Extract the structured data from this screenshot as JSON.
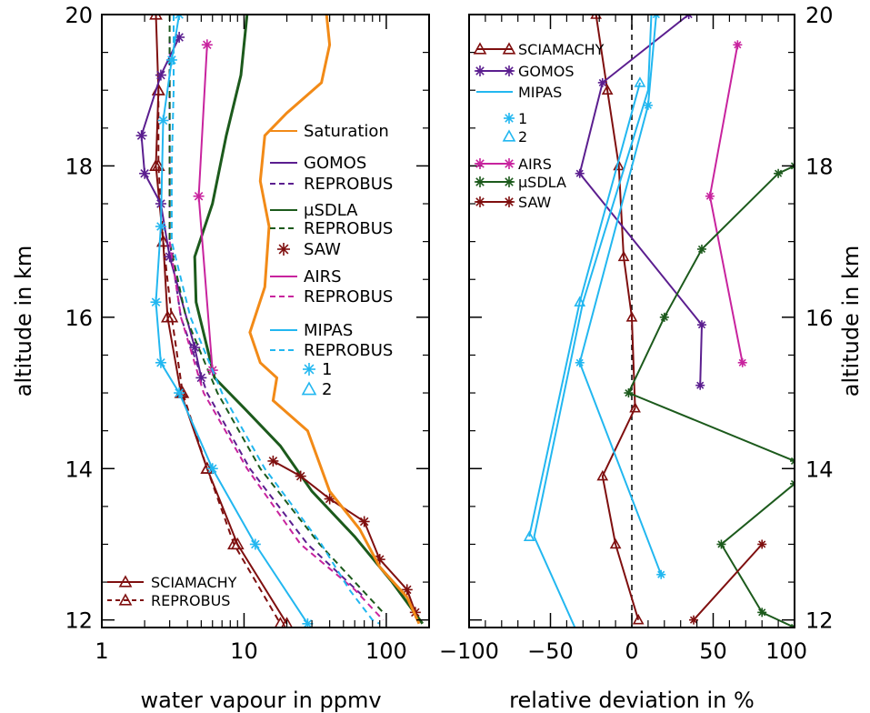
{
  "chart_data": [
    {
      "type": "line",
      "xscale": "log",
      "xlim": [
        1,
        200
      ],
      "ylim": [
        11.9,
        20
      ],
      "xticks": [
        "1",
        "10",
        "100"
      ],
      "yticks": [
        "12",
        "14",
        "16",
        "18",
        "20"
      ],
      "xlabel": "water vapour in ppmv",
      "ylabel": "altitude in km",
      "legend_main": [
        "Saturation",
        "GOMOS",
        "REPROBUS",
        "μSDLA",
        "REPROBUS",
        "SAW",
        "AIRS",
        "REPROBUS",
        "MIPAS",
        "REPROBUS",
        "1",
        "2"
      ],
      "legend_bottom": [
        "SCIAMACHY",
        "REPROBUS"
      ],
      "series": [
        {
          "name": "SCIAMACHY",
          "color": "#7f0f0f",
          "marker": "triangle",
          "points": [
            [
              2.4,
              20
            ],
            [
              2.5,
              19
            ],
            [
              2.4,
              18
            ],
            [
              2.7,
              17
            ],
            [
              2.9,
              16
            ],
            [
              3.6,
              15
            ],
            [
              5.5,
              14
            ],
            [
              9,
              13
            ],
            [
              20,
              11.95
            ]
          ]
        },
        {
          "name": "SCIAMACHY REPROBUS",
          "color": "#7f0f0f",
          "dash": true,
          "marker": "triangle",
          "points": [
            [
              2.5,
              19
            ],
            [
              2.5,
              18
            ],
            [
              2.7,
              17
            ],
            [
              3.1,
              16
            ],
            [
              3.7,
              15
            ],
            [
              5.5,
              14
            ],
            [
              8.5,
              13
            ],
            [
              18,
              11.95
            ]
          ]
        },
        {
          "name": "GOMOS",
          "color": "#5b1e8f",
          "marker": "asterisk",
          "points": [
            [
              3.5,
              19.7
            ],
            [
              2.6,
              19.2
            ],
            [
              1.9,
              18.4
            ],
            [
              2.0,
              17.9
            ],
            [
              2.6,
              17.5
            ],
            [
              3.0,
              16.8
            ],
            [
              4.5,
              15.6
            ],
            [
              5,
              15.2
            ]
          ]
        },
        {
          "name": "GOMOS REPROBUS",
          "color": "#5b1e8f",
          "dash": true,
          "points": [
            [
              3.0,
              19.7
            ],
            [
              3.0,
              19
            ],
            [
              3.0,
              18
            ],
            [
              3.0,
              17
            ],
            [
              3.6,
              16
            ],
            [
              5.5,
              15
            ],
            [
              11,
              14
            ],
            [
              28,
              13
            ],
            [
              70,
              12.3
            ]
          ]
        },
        {
          "name": "μSDLA",
          "color": "#1c5a1c",
          "marker": "none",
          "points": [
            [
              10.5,
              20
            ],
            [
              9.5,
              19.2
            ],
            [
              7.5,
              18.4
            ],
            [
              6,
              17.5
            ],
            [
              4.5,
              16.8
            ],
            [
              4.6,
              16.2
            ],
            [
              6.2,
              15.2
            ],
            [
              10,
              14.8
            ],
            [
              18,
              14.3
            ],
            [
              30,
              13.7
            ],
            [
              60,
              13.1
            ],
            [
              110,
              12.5
            ],
            [
              180,
              11.95
            ]
          ]
        },
        {
          "name": "μSDLA REPROBUS",
          "color": "#1c5a1c",
          "dash": true,
          "points": [
            [
              3.0,
              20
            ],
            [
              3.0,
              19
            ],
            [
              3.0,
              18
            ],
            [
              3.0,
              17
            ],
            [
              3.9,
              16
            ],
            [
              6.5,
              15
            ],
            [
              13,
              14
            ],
            [
              34,
              13
            ],
            [
              95,
              12.1
            ]
          ]
        },
        {
          "name": "SAW",
          "color": "#7f0f0f",
          "marker": "asterisk",
          "points": [
            [
              16,
              14.1
            ],
            [
              25,
              13.9
            ],
            [
              40,
              13.6
            ],
            [
              70,
              13.3
            ],
            [
              90,
              12.8
            ],
            [
              140,
              12.4
            ],
            [
              160,
              12.1
            ]
          ]
        },
        {
          "name": "AIRS",
          "color": "#c8239e",
          "marker": "asterisk",
          "points": [
            [
              5.5,
              19.6
            ],
            [
              4.8,
              17.6
            ],
            [
              6,
              15.3
            ]
          ]
        },
        {
          "name": "AIRS REPROBUS",
          "color": "#c8239e",
          "dash": true,
          "points": [
            [
              3.0,
              17
            ],
            [
              3.6,
              16
            ],
            [
              5.2,
              15
            ],
            [
              10.5,
              14
            ],
            [
              25,
              13
            ],
            [
              60,
              12.4
            ],
            [
              95,
              12
            ]
          ]
        },
        {
          "name": "MIPAS",
          "color": "#22b7f0",
          "marker": "asterisk",
          "points": [
            [
              3.5,
              20
            ],
            [
              3.1,
              19.4
            ],
            [
              2.7,
              18.6
            ],
            [
              2.6,
              17.2
            ],
            [
              2.4,
              16.2
            ],
            [
              2.6,
              15.4
            ],
            [
              3.5,
              15
            ],
            [
              6,
              14
            ],
            [
              12,
              13
            ],
            [
              28,
              11.95
            ]
          ]
        },
        {
          "name": "MIPAS REPROBUS",
          "color": "#22b7f0",
          "dash": true,
          "points": [
            [
              3.2,
              20
            ],
            [
              3.2,
              19
            ],
            [
              3.1,
              18
            ],
            [
              3.1,
              17
            ],
            [
              4.2,
              16
            ],
            [
              7,
              15
            ],
            [
              14,
              14
            ],
            [
              35,
              13
            ],
            [
              55,
              12.4
            ],
            [
              80,
              12
            ],
            [
              90,
              11.95
            ]
          ]
        },
        {
          "name": "Saturation",
          "color": "#f28a17",
          "marker": "none",
          "points": [
            [
              38,
              20
            ],
            [
              40,
              19.6
            ],
            [
              35,
              19.1
            ],
            [
              20,
              18.7
            ],
            [
              14,
              18.4
            ],
            [
              13,
              17.8
            ],
            [
              15,
              17.2
            ],
            [
              14,
              16.4
            ],
            [
              11,
              15.8
            ],
            [
              13,
              15.4
            ],
            [
              17,
              15.2
            ],
            [
              16,
              14.9
            ],
            [
              28,
              14.5
            ],
            [
              40,
              13.7
            ],
            [
              65,
              13.2
            ],
            [
              90,
              12.7
            ],
            [
              140,
              12.3
            ],
            [
              170,
              11.95
            ]
          ]
        }
      ]
    },
    {
      "type": "line",
      "xlim": [
        -100,
        100
      ],
      "ylim": [
        11.9,
        20
      ],
      "xticks": [
        "−100",
        "−50",
        "0",
        "50",
        "100"
      ],
      "yticks": [
        "12",
        "14",
        "16",
        "18",
        "20"
      ],
      "xlabel": "relative deviation in %",
      "ylabel": "altitude in km",
      "legend": [
        "SCIAMACHY",
        "GOMOS",
        "MIPAS",
        "1",
        "2",
        "AIRS",
        "μSDLA",
        "SAW"
      ],
      "series": [
        {
          "name": "SCIAMACHY",
          "color": "#7f0f0f",
          "marker": "triangle",
          "points": [
            [
              -22,
              20
            ],
            [
              -15,
              19
            ],
            [
              -8,
              18
            ],
            [
              -5,
              16.8
            ],
            [
              0,
              16
            ],
            [
              2,
              14.8
            ],
            [
              -18,
              13.9
            ],
            [
              -10,
              13
            ],
            [
              4,
              12
            ]
          ]
        },
        {
          "name": "GOMOS",
          "color": "#5b1e8f",
          "marker": "asterisk",
          "points": [
            [
              35,
              20
            ],
            [
              -18,
              19.1
            ],
            [
              -32,
              17.9
            ],
            [
              43,
              15.9
            ],
            [
              42,
              15.1
            ]
          ]
        },
        {
          "name": "MIPAS",
          "color": "#22b7f0",
          "marker": "none",
          "points": [
            [
              12,
              20
            ],
            [
              10,
              19.0
            ],
            [
              -30,
              16.2
            ],
            [
              -60,
              13.1
            ],
            [
              -35,
              11.9
            ]
          ]
        },
        {
          "name": "MIPAS 1",
          "color": "#22b7f0",
          "marker": "asterisk",
          "points": [
            [
              15,
              20
            ],
            [
              10,
              18.8
            ],
            [
              -32,
              15.4
            ],
            [
              18,
              12.6
            ]
          ]
        },
        {
          "name": "MIPAS 2",
          "color": "#22b7f0",
          "marker": "triangle",
          "points": [
            [
              5,
              19.1
            ],
            [
              -32,
              16.2
            ],
            [
              -63,
              13.1
            ]
          ]
        },
        {
          "name": "AIRS",
          "color": "#c8239e",
          "marker": "asterisk",
          "points": [
            [
              65,
              19.6
            ],
            [
              48,
              17.6
            ],
            [
              68,
              15.4
            ]
          ]
        },
        {
          "name": "μSDLA",
          "color": "#1c5a1c",
          "marker": "asterisk",
          "points": [
            [
              100,
              18
            ],
            [
              90,
              17.9
            ],
            [
              43,
              16.9
            ],
            [
              20,
              16
            ],
            [
              -2,
              15
            ],
            [
              100,
              14.1
            ]
          ]
        },
        {
          "name": "μSDLA b",
          "color": "#1c5a1c",
          "marker": "asterisk",
          "points": [
            [
              100,
              13.8
            ],
            [
              55,
              13
            ],
            [
              80,
              12.1
            ],
            [
              100,
              11.9
            ]
          ]
        },
        {
          "name": "SAW",
          "color": "#7f0f0f",
          "marker": "asterisk",
          "points": [
            [
              80,
              13
            ],
            [
              38,
              12
            ]
          ]
        }
      ]
    }
  ]
}
